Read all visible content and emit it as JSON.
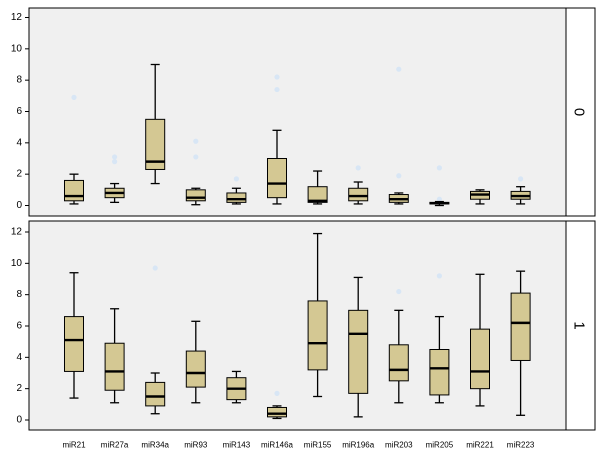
{
  "chart_data": {
    "type": "boxplot",
    "categories": [
      "miR21",
      "miR27a",
      "miR34a",
      "miR93",
      "miR143",
      "miR146a",
      "miR155",
      "miR196a",
      "miR203",
      "miR205",
      "miR221",
      "miR223"
    ],
    "ylim": [
      0,
      12
    ],
    "yticks": [
      "0",
      "2",
      "4",
      "6",
      "8",
      "10",
      "12"
    ],
    "grid": false,
    "colors": {
      "box_fill": "#d4c893",
      "panel_bg": "#f0f0f0",
      "outlier": "#d8e6f5",
      "stroke": "#000000"
    },
    "facets": [
      {
        "label": "0",
        "boxes": [
          {
            "min": 0.1,
            "q1": 0.3,
            "median": 0.6,
            "q3": 1.6,
            "max": 2.0,
            "outliers": [
              6.9
            ]
          },
          {
            "min": 0.2,
            "q1": 0.5,
            "median": 0.8,
            "q3": 1.1,
            "max": 1.4,
            "outliers": [
              2.8,
              3.1
            ]
          },
          {
            "min": 1.4,
            "q1": 2.3,
            "median": 2.8,
            "q3": 5.5,
            "max": 9.0,
            "outliers": []
          },
          {
            "min": 0.05,
            "q1": 0.3,
            "median": 0.5,
            "q3": 1.0,
            "max": 1.1,
            "outliers": [
              3.1,
              4.1
            ]
          },
          {
            "min": 0.1,
            "q1": 0.2,
            "median": 0.4,
            "q3": 0.8,
            "max": 1.1,
            "outliers": [
              1.7
            ]
          },
          {
            "min": 0.1,
            "q1": 0.5,
            "median": 1.4,
            "q3": 3.0,
            "max": 4.8,
            "outliers": [
              7.4,
              8.2
            ]
          },
          {
            "min": 0.1,
            "q1": 0.2,
            "median": 0.3,
            "q3": 1.2,
            "max": 2.2,
            "outliers": []
          },
          {
            "min": 0.1,
            "q1": 0.3,
            "median": 0.6,
            "q3": 1.1,
            "max": 1.5,
            "outliers": [
              2.4
            ]
          },
          {
            "min": 0.1,
            "q1": 0.2,
            "median": 0.4,
            "q3": 0.7,
            "max": 0.8,
            "outliers": [
              1.9,
              8.7
            ]
          },
          {
            "min": 0.0,
            "q1": 0.1,
            "median": 0.15,
            "q3": 0.2,
            "max": 0.25,
            "outliers": [
              0.4,
              2.4
            ]
          },
          {
            "min": 0.1,
            "q1": 0.4,
            "median": 0.7,
            "q3": 0.9,
            "max": 1.0,
            "outliers": []
          },
          {
            "min": 0.1,
            "q1": 0.4,
            "median": 0.6,
            "q3": 0.9,
            "max": 1.2,
            "outliers": [
              1.7
            ]
          }
        ]
      },
      {
        "label": "1",
        "boxes": [
          {
            "min": 1.4,
            "q1": 3.1,
            "median": 5.1,
            "q3": 6.6,
            "max": 9.4,
            "outliers": []
          },
          {
            "min": 1.1,
            "q1": 1.9,
            "median": 3.1,
            "q3": 4.9,
            "max": 7.1,
            "outliers": []
          },
          {
            "min": 0.4,
            "q1": 0.9,
            "median": 1.5,
            "q3": 2.4,
            "max": 3.0,
            "outliers": [
              9.7
            ]
          },
          {
            "min": 1.1,
            "q1": 2.1,
            "median": 3.0,
            "q3": 4.4,
            "max": 6.3,
            "outliers": []
          },
          {
            "min": 1.1,
            "q1": 1.3,
            "median": 2.0,
            "q3": 2.7,
            "max": 3.1,
            "outliers": []
          },
          {
            "min": 0.1,
            "q1": 0.2,
            "median": 0.4,
            "q3": 0.8,
            "max": 0.9,
            "outliers": [
              1.7
            ]
          },
          {
            "min": 1.5,
            "q1": 3.2,
            "median": 4.9,
            "q3": 7.6,
            "max": 11.9,
            "outliers": []
          },
          {
            "min": 0.2,
            "q1": 1.7,
            "median": 5.5,
            "q3": 7.0,
            "max": 9.1,
            "outliers": []
          },
          {
            "min": 1.1,
            "q1": 2.5,
            "median": 3.2,
            "q3": 4.8,
            "max": 7.0,
            "outliers": [
              8.2
            ]
          },
          {
            "min": 1.1,
            "q1": 1.6,
            "median": 3.3,
            "q3": 4.5,
            "max": 6.6,
            "outliers": [
              9.2
            ]
          },
          {
            "min": 0.9,
            "q1": 2.0,
            "median": 3.1,
            "q3": 5.8,
            "max": 9.3,
            "outliers": []
          },
          {
            "min": 0.3,
            "q1": 3.8,
            "median": 6.2,
            "q3": 8.1,
            "max": 9.5,
            "outliers": []
          }
        ]
      }
    ]
  }
}
